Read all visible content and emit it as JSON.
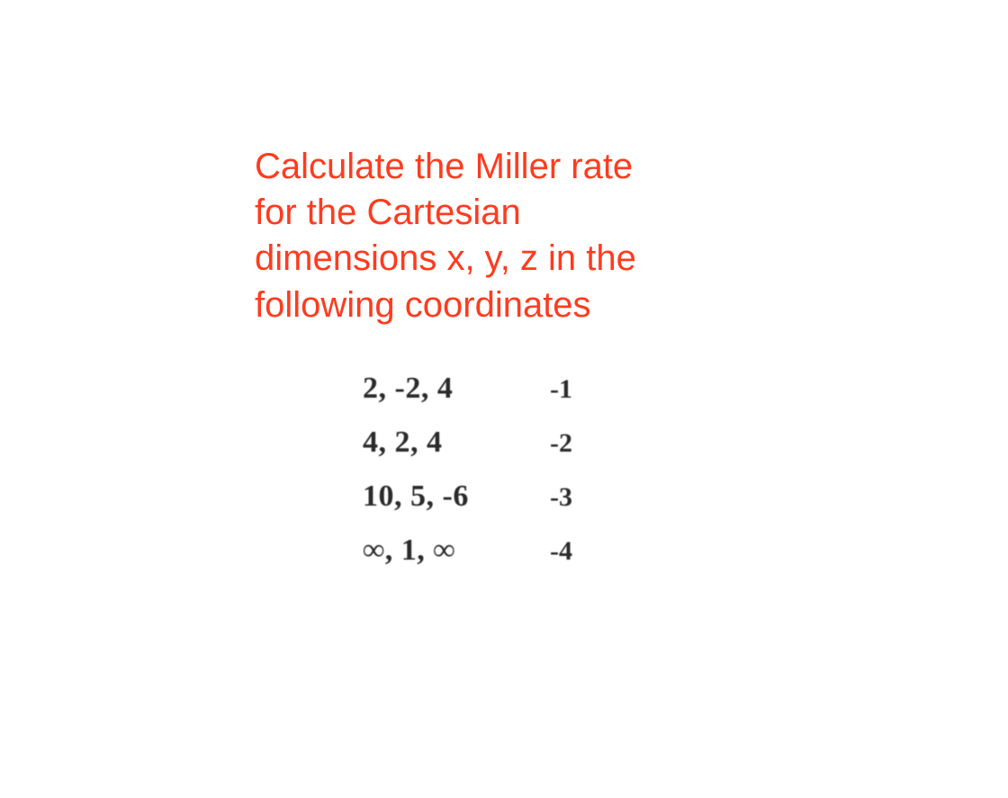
{
  "prompt": {
    "line1": "Calculate the Miller rate",
    "line2": "for the Cartesian",
    "line3": "dimensions x, y, z in the",
    "line4": "following coordinates",
    "color": "#ff3b1f",
    "fontsize": 40
  },
  "rows": [
    {
      "intercepts": "2, -2, 4",
      "label": "-1"
    },
    {
      "intercepts": "4, 2, 4",
      "label": "-2"
    },
    {
      "intercepts": "10, 5, -6",
      "label": "-3"
    },
    {
      "intercepts": "∞, 1, ∞",
      "label": "-4"
    }
  ],
  "style": {
    "text_color": "#2b2b2b",
    "background": "#ffffff",
    "intercepts_fontsize": 34,
    "label_fontsize": 30
  }
}
